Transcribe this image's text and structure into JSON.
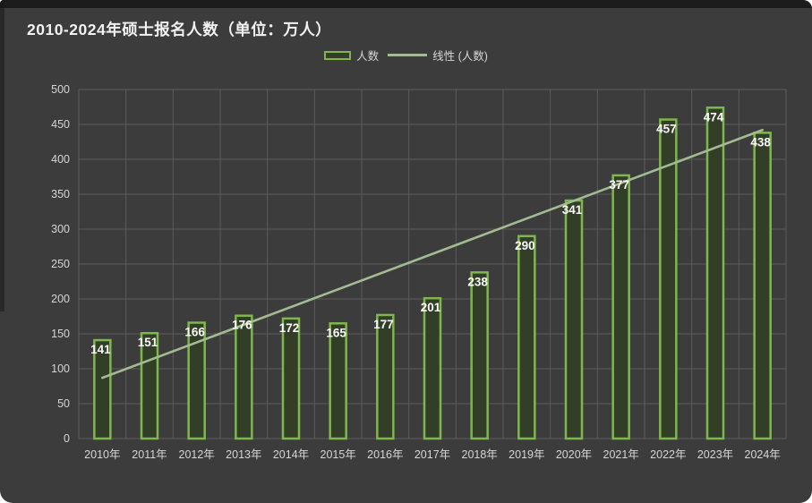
{
  "header": {
    "title": "2010-2024年硕士报名人数（单位：万人）"
  },
  "legend": {
    "bar_label": "人数",
    "line_label": "线性 (人数)"
  },
  "colors": {
    "background": "#3c3c3c",
    "grid": "#5b5b5b",
    "bar_stroke": "#7eb74d",
    "bar_fill": "#333e28",
    "trend_line": "#a3bb92",
    "tick_text": "#d6d6d6",
    "value_label": "#fafafa",
    "title_text": "#f2f2f2"
  },
  "chart_data": {
    "type": "bar",
    "title": "2010-2024年硕士报名人数（单位：万人）",
    "xlabel": "",
    "ylabel": "",
    "categories": [
      "2010年",
      "2011年",
      "2012年",
      "2013年",
      "2014年",
      "2015年",
      "2016年",
      "2017年",
      "2018年",
      "2019年",
      "2020年",
      "2021年",
      "2022年",
      "2023年",
      "2024年"
    ],
    "series": [
      {
        "name": "人数",
        "type": "bar",
        "values": [
          141,
          151,
          166,
          176,
          172,
          165,
          177,
          201,
          238,
          290,
          341,
          377,
          457,
          474,
          438
        ]
      },
      {
        "name": "线性 (人数)",
        "type": "trendline",
        "start": 87,
        "end": 442
      }
    ],
    "ylim": [
      0,
      500
    ],
    "ytick_step": 50,
    "grid": true,
    "legend_position": "top-center"
  }
}
